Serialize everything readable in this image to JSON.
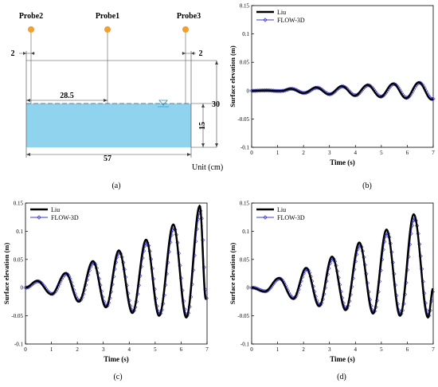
{
  "diagram": {
    "probes": [
      "Probe2",
      "Probe1",
      "Probe3"
    ],
    "dims": {
      "left_gap": "2",
      "right_gap": "2",
      "half_len": "28.5",
      "tank_height": "30",
      "water_depth": "15",
      "tank_len": "57"
    },
    "unit": "Unit (cm)",
    "caption": "(a)",
    "colors": {
      "water": "#8fd3ef",
      "probe": "#f0a030"
    }
  },
  "chart_data": [
    {
      "id": "b",
      "type": "line",
      "caption": "(b)",
      "xlabel": "Time (s)",
      "ylabel": "Surface elevation (m)",
      "xlim": [
        0,
        7
      ],
      "ylim": [
        -0.1,
        0.15
      ],
      "xticks": [
        "0",
        "1",
        "2",
        "3",
        "4",
        "5",
        "6",
        "7"
      ],
      "yticks": [
        "-0.1",
        "-0.05",
        "0",
        "0.05",
        "0.1",
        "0.15"
      ],
      "legend": "top-left",
      "wave": {
        "amp0": 0.001,
        "amp_growth": 0.0023,
        "period": 0.99,
        "phase": 0.25,
        "onset": 1.2,
        "end": 7.0
      },
      "series": [
        {
          "name": "Liu",
          "color": "#000000",
          "style": "thick"
        },
        {
          "name": "FLOW-3D",
          "color": "#3a3ad0",
          "style": "markers"
        }
      ]
    },
    {
      "id": "c",
      "type": "line",
      "caption": "(c)",
      "xlabel": "Time (s)",
      "ylabel": "Surface elevation (m)",
      "xlim": [
        0,
        7
      ],
      "ylim": [
        -0.1,
        0.15
      ],
      "xticks": [
        "0",
        "1",
        "2",
        "3",
        "4",
        "5",
        "6",
        "7"
      ],
      "yticks": [
        "-0.1",
        "-0.05",
        "0",
        "0.05",
        "0.1",
        "0.15"
      ],
      "legend": "top-left",
      "peaks": [
        [
          0.45,
          0.012
        ],
        [
          1.55,
          0.026
        ],
        [
          2.6,
          0.047
        ],
        [
          3.6,
          0.066
        ],
        [
          4.65,
          0.085
        ],
        [
          5.7,
          0.112
        ],
        [
          6.72,
          0.145
        ]
      ],
      "troughs": [
        [
          0.0,
          0.0
        ],
        [
          1.0,
          -0.012
        ],
        [
          2.05,
          -0.025
        ],
        [
          3.1,
          -0.035
        ],
        [
          4.12,
          -0.045
        ],
        [
          5.15,
          -0.05
        ],
        [
          6.2,
          -0.053
        ],
        [
          6.95,
          -0.02
        ]
      ],
      "series": [
        {
          "name": "Liu",
          "color": "#000000",
          "style": "thick"
        },
        {
          "name": "FLOW-3D",
          "color": "#3a3ad0",
          "style": "markers"
        }
      ]
    },
    {
      "id": "d",
      "type": "line",
      "caption": "(d)",
      "xlabel": "Time (s)",
      "ylabel": "Surface elevation (m)",
      "xlim": [
        0,
        7
      ],
      "ylim": [
        -0.1,
        0.15
      ],
      "xticks": [
        "0",
        "1",
        "2",
        "3",
        "4",
        "5",
        "6",
        "7"
      ],
      "yticks": [
        "-0.1",
        "-0.05",
        "0",
        "0.05",
        "0.1",
        "0.15"
      ],
      "legend": "top-left",
      "peaks": [
        [
          1.05,
          0.017
        ],
        [
          2.1,
          0.035
        ],
        [
          3.1,
          0.055
        ],
        [
          4.15,
          0.08
        ],
        [
          5.2,
          0.103
        ],
        [
          6.25,
          0.13
        ]
      ],
      "troughs": [
        [
          0.0,
          0.0
        ],
        [
          0.5,
          -0.007
        ],
        [
          1.6,
          -0.02
        ],
        [
          2.6,
          -0.033
        ],
        [
          3.62,
          -0.04
        ],
        [
          4.68,
          -0.046
        ],
        [
          5.72,
          -0.05
        ],
        [
          6.8,
          -0.053
        ],
        [
          7.0,
          0.0
        ]
      ],
      "series": [
        {
          "name": "Liu",
          "color": "#000000",
          "style": "thick"
        },
        {
          "name": "FLOW-3D",
          "color": "#3a3ad0",
          "style": "markers"
        }
      ]
    }
  ]
}
